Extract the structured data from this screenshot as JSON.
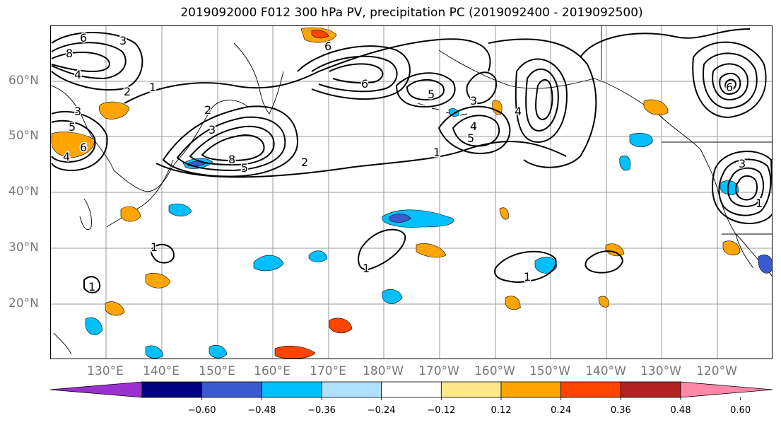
{
  "title": "2019092000 F012 300 hPa PV, precipitation PC (2019092400 - 2019092500)",
  "map": {
    "lat_labels": [
      "60°N",
      "50°N",
      "40°N",
      "30°N",
      "20°N"
    ],
    "lon_labels": [
      "130°E",
      "140°E",
      "150°E",
      "160°E",
      "170°E",
      "180°W",
      "170°W",
      "160°W",
      "150°W",
      "140°W",
      "130°W",
      "120°W"
    ],
    "contour_labels": [
      "6",
      "3",
      "8",
      "4",
      "2",
      "1",
      "3",
      "5",
      "6",
      "4",
      "2",
      "3",
      "5",
      "8",
      "2",
      "1",
      "6",
      "5",
      "4",
      "3",
      "5",
      "6",
      "4",
      "1",
      "1",
      "1",
      "1",
      "1",
      "3",
      "6"
    ]
  },
  "colorbar": {
    "colors": [
      "#9b30d0",
      "#000080",
      "#3a5bd0",
      "#00bfff",
      "#b0e0ff",
      "#ffffff",
      "#ffe98a",
      "#ffa500",
      "#ff4500",
      "#b22222",
      "#ff88aa"
    ],
    "ticks": [
      "−0.60",
      "−0.48",
      "−0.36",
      "−0.24",
      "−0.12",
      "0.12",
      "0.24",
      "0.36",
      "0.48",
      "0.60"
    ]
  }
}
